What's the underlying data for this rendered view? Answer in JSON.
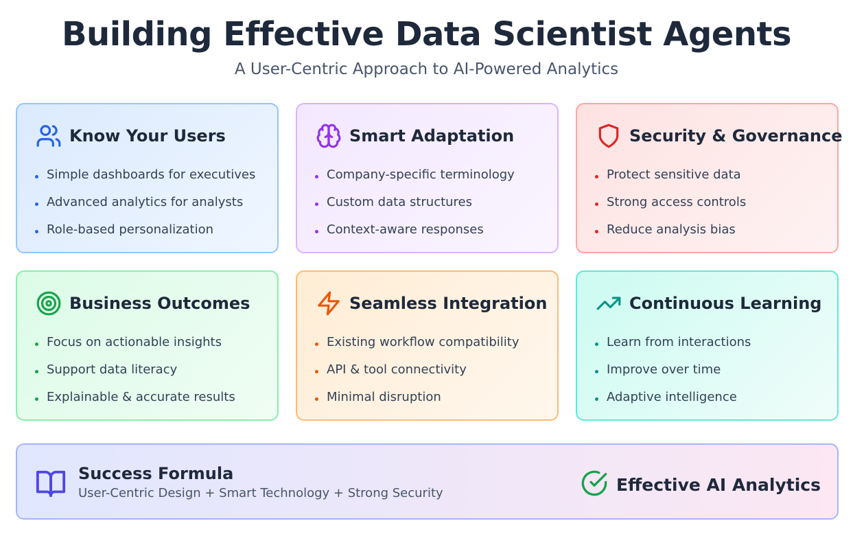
{
  "header": {
    "title": "Building Effective Data Scientist Agents",
    "subtitle": "A User-Centric Approach to AI-Powered Analytics"
  },
  "cards": [
    {
      "title": "Know Your Users",
      "icon": "users-icon",
      "accent": "#2563eb",
      "items": [
        "Simple dashboards for executives",
        "Advanced analytics for analysts",
        "Role-based personalization"
      ]
    },
    {
      "title": "Smart Adaptation",
      "icon": "brain-icon",
      "accent": "#9333ea",
      "items": [
        "Company-specific terminology",
        "Custom data structures",
        "Context-aware responses"
      ]
    },
    {
      "title": "Security & Governance",
      "icon": "shield-icon",
      "accent": "#dc2626",
      "items": [
        "Protect sensitive data",
        "Strong access controls",
        "Reduce analysis bias"
      ]
    },
    {
      "title": "Business Outcomes",
      "icon": "target-icon",
      "accent": "#16a34a",
      "items": [
        "Focus on actionable insights",
        "Support data literacy",
        "Explainable & accurate results"
      ]
    },
    {
      "title": "Seamless Integration",
      "icon": "lightning-icon",
      "accent": "#ea580c",
      "items": [
        "Existing workflow compatibility",
        "API & tool connectivity",
        "Minimal disruption"
      ]
    },
    {
      "title": "Continuous Learning",
      "icon": "trending-up-icon",
      "accent": "#0d9488",
      "items": [
        "Learn from interactions",
        "Improve over time",
        "Adaptive intelligence"
      ]
    }
  ],
  "footer": {
    "icon": "book-icon",
    "title": "Success Formula",
    "subtitle": "User-Centric Design + Smart Technology + Strong Security",
    "result_icon": "check-circle-icon",
    "result_label": "Effective AI Analytics",
    "accent": "#4f46e5",
    "result_accent": "#16a34a"
  }
}
